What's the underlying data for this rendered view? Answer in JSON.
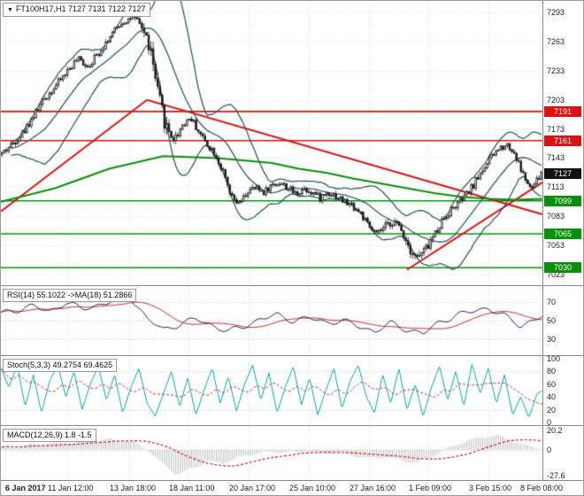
{
  "title": {
    "text": "FT100H17,H1 7127 7131 7122 7127"
  },
  "colors": {
    "grid": "#dcdcdc",
    "frame": "#8a8a8a",
    "candle_stroke": "#1a1a1a",
    "bull_fill": "#ffffff",
    "bear_fill": "#1a1a1a",
    "bollinger": "#2f5f5f",
    "red_line": "#dd1111",
    "green_line": "#0a8f0a",
    "badge_red": "#dd1111",
    "badge_green": "#0a8f0a",
    "badge_black": "#111111",
    "rsi_line": "#1a1a66",
    "signal_red": "#cc2222",
    "stoch_line": "#00a6a6",
    "macd_hist": "#bdbdbd"
  },
  "chart_data": {
    "type": "candlestick",
    "symbol": "FT100H17",
    "timeframe": "H1",
    "ohlc_current": {
      "open": 7127,
      "high": 7131,
      "low": 7122,
      "close": 7127
    },
    "x_labels": [
      {
        "label": "6 Jan 2017",
        "pos": 0.008,
        "bold": true
      },
      {
        "label": "11 Jan 12:00",
        "pos": 0.122
      },
      {
        "label": "13 Jan 18:00",
        "pos": 0.237
      },
      {
        "label": "18 Jan 11:00",
        "pos": 0.347
      },
      {
        "label": "20 Jan 17:00",
        "pos": 0.458
      },
      {
        "label": "25 Jan 10:00",
        "pos": 0.568
      },
      {
        "label": "27 Jan 16:00",
        "pos": 0.679
      },
      {
        "label": "1 Feb 09:00",
        "pos": 0.789
      },
      {
        "label": "3 Feb 15:00",
        "pos": 0.9
      },
      {
        "label": "8 Feb 08:00",
        "pos": 0.995
      }
    ],
    "main": {
      "y_ticks": [
        7293,
        7263,
        7233,
        7203,
        7173,
        7143,
        7113,
        7083,
        7053,
        7023
      ],
      "y_range": [
        7012,
        7305
      ],
      "hlines": [
        {
          "price": 7191,
          "color": "red"
        },
        {
          "price": 7161,
          "color": "red"
        },
        {
          "price": 7099,
          "color": "green"
        },
        {
          "price": 7065,
          "color": "green"
        },
        {
          "price": 7030,
          "color": "green"
        }
      ],
      "price_badges": [
        {
          "price": 7191,
          "kind": "red"
        },
        {
          "price": 7161,
          "kind": "red"
        },
        {
          "price": 7127,
          "kind": "black"
        },
        {
          "price": 7099,
          "kind": "green"
        },
        {
          "price": 7065,
          "kind": "green"
        },
        {
          "price": 7030,
          "kind": "green"
        }
      ],
      "trendlines": [
        {
          "points": [
            [
              0,
              7088
            ],
            [
              0.27,
              7203
            ],
            [
              1,
              7085
            ]
          ],
          "color": "red",
          "width": 2
        },
        {
          "points": [
            [
              0.75,
              7028
            ],
            [
              1,
              7118
            ]
          ],
          "color": "red",
          "width": 2
        }
      ],
      "ma_green": {
        "points": [
          [
            0,
            7098
          ],
          [
            0.1,
            7112
          ],
          [
            0.2,
            7132
          ],
          [
            0.3,
            7145
          ],
          [
            0.4,
            7143
          ],
          [
            0.5,
            7138
          ],
          [
            0.55,
            7132
          ],
          [
            0.6,
            7128
          ],
          [
            0.65,
            7122
          ],
          [
            0.7,
            7117
          ],
          [
            0.75,
            7112
          ],
          [
            0.8,
            7107
          ],
          [
            0.85,
            7103
          ],
          [
            0.9,
            7101
          ],
          [
            0.95,
            7100
          ],
          [
            1,
            7101
          ]
        ],
        "width": 2
      },
      "bollinger": {
        "period": 20,
        "dev": 2
      },
      "candles_count": 240,
      "price_path": [
        [
          0,
          7148
        ],
        [
          0.02,
          7158
        ],
        [
          0.04,
          7170
        ],
        [
          0.06,
          7188
        ],
        [
          0.08,
          7205
        ],
        [
          0.1,
          7218
        ],
        [
          0.12,
          7232
        ],
        [
          0.14,
          7245
        ],
        [
          0.16,
          7238
        ],
        [
          0.18,
          7252
        ],
        [
          0.2,
          7268
        ],
        [
          0.22,
          7282
        ],
        [
          0.24,
          7288
        ],
        [
          0.26,
          7278
        ],
        [
          0.275,
          7255
        ],
        [
          0.29,
          7205
        ],
        [
          0.305,
          7175
        ],
        [
          0.32,
          7162
        ],
        [
          0.335,
          7178
        ],
        [
          0.35,
          7185
        ],
        [
          0.365,
          7170
        ],
        [
          0.38,
          7158
        ],
        [
          0.395,
          7148
        ],
        [
          0.41,
          7128
        ],
        [
          0.425,
          7102
        ],
        [
          0.44,
          7095
        ],
        [
          0.455,
          7108
        ],
        [
          0.47,
          7112
        ],
        [
          0.485,
          7108
        ],
        [
          0.5,
          7115
        ],
        [
          0.515,
          7118
        ],
        [
          0.53,
          7112
        ],
        [
          0.545,
          7106
        ],
        [
          0.56,
          7112
        ],
        [
          0.575,
          7108
        ],
        [
          0.59,
          7102
        ],
        [
          0.605,
          7108
        ],
        [
          0.62,
          7104
        ],
        [
          0.635,
          7098
        ],
        [
          0.65,
          7094
        ],
        [
          0.665,
          7086
        ],
        [
          0.68,
          7072
        ],
        [
          0.695,
          7064
        ],
        [
          0.71,
          7072
        ],
        [
          0.725,
          7078
        ],
        [
          0.74,
          7070
        ],
        [
          0.755,
          7052
        ],
        [
          0.77,
          7040
        ],
        [
          0.785,
          7048
        ],
        [
          0.8,
          7062
        ],
        [
          0.815,
          7078
        ],
        [
          0.83,
          7088
        ],
        [
          0.845,
          7096
        ],
        [
          0.86,
          7104
        ],
        [
          0.875,
          7116
        ],
        [
          0.89,
          7130
        ],
        [
          0.905,
          7142
        ],
        [
          0.92,
          7152
        ],
        [
          0.935,
          7158
        ],
        [
          0.95,
          7148
        ],
        [
          0.965,
          7128
        ],
        [
          0.98,
          7110
        ],
        [
          0.99,
          7118
        ],
        [
          1,
          7127
        ]
      ]
    },
    "rsi": {
      "label": "RSI(14) 55.1022 ->MA(18) 51.2866",
      "value": 55.1022,
      "ma_value": 51.2866,
      "y_ticks": [
        70,
        50,
        30
      ],
      "range": [
        12,
        88
      ],
      "levels": [
        70,
        50,
        30
      ],
      "points": [
        [
          0,
          58
        ],
        [
          0.03,
          62
        ],
        [
          0.06,
          66
        ],
        [
          0.09,
          60
        ],
        [
          0.12,
          70
        ],
        [
          0.15,
          63
        ],
        [
          0.18,
          67
        ],
        [
          0.21,
          72
        ],
        [
          0.24,
          75
        ],
        [
          0.27,
          52
        ],
        [
          0.3,
          40
        ],
        [
          0.33,
          46
        ],
        [
          0.36,
          52
        ],
        [
          0.39,
          45
        ],
        [
          0.42,
          38
        ],
        [
          0.45,
          44
        ],
        [
          0.48,
          52
        ],
        [
          0.51,
          56
        ],
        [
          0.54,
          50
        ],
        [
          0.57,
          53
        ],
        [
          0.6,
          48
        ],
        [
          0.63,
          50
        ],
        [
          0.66,
          44
        ],
        [
          0.69,
          38
        ],
        [
          0.72,
          47
        ],
        [
          0.75,
          40
        ],
        [
          0.78,
          36
        ],
        [
          0.81,
          48
        ],
        [
          0.84,
          56
        ],
        [
          0.87,
          60
        ],
        [
          0.9,
          64
        ],
        [
          0.93,
          55
        ],
        [
          0.96,
          44
        ],
        [
          0.98,
          50
        ],
        [
          1,
          55.1
        ]
      ]
    },
    "stoch": {
      "label": "Stoch(5,3,3) 49.2754 69.4625",
      "value": 49.2754,
      "signal_value": 69.4625,
      "y_ticks": [
        100,
        80,
        60,
        40,
        20,
        0
      ],
      "range": [
        -4,
        104
      ],
      "levels": [
        80,
        20
      ],
      "points": [
        [
          0,
          85
        ],
        [
          0.015,
          55
        ],
        [
          0.03,
          90
        ],
        [
          0.045,
          25
        ],
        [
          0.06,
          75
        ],
        [
          0.075,
          15
        ],
        [
          0.09,
          65
        ],
        [
          0.105,
          90
        ],
        [
          0.12,
          40
        ],
        [
          0.135,
          80
        ],
        [
          0.15,
          20
        ],
        [
          0.165,
          60
        ],
        [
          0.18,
          88
        ],
        [
          0.195,
          35
        ],
        [
          0.21,
          75
        ],
        [
          0.225,
          15
        ],
        [
          0.24,
          55
        ],
        [
          0.255,
          85
        ],
        [
          0.27,
          30
        ],
        [
          0.285,
          10
        ],
        [
          0.3,
          45
        ],
        [
          0.315,
          80
        ],
        [
          0.33,
          25
        ],
        [
          0.345,
          70
        ],
        [
          0.36,
          12
        ],
        [
          0.375,
          50
        ],
        [
          0.39,
          85
        ],
        [
          0.405,
          30
        ],
        [
          0.42,
          72
        ],
        [
          0.435,
          18
        ],
        [
          0.45,
          60
        ],
        [
          0.465,
          90
        ],
        [
          0.48,
          35
        ],
        [
          0.495,
          78
        ],
        [
          0.51,
          15
        ],
        [
          0.525,
          55
        ],
        [
          0.54,
          88
        ],
        [
          0.555,
          28
        ],
        [
          0.57,
          70
        ],
        [
          0.585,
          12
        ],
        [
          0.6,
          50
        ],
        [
          0.615,
          85
        ],
        [
          0.63,
          22
        ],
        [
          0.645,
          65
        ],
        [
          0.66,
          90
        ],
        [
          0.675,
          40
        ],
        [
          0.69,
          15
        ],
        [
          0.705,
          75
        ],
        [
          0.72,
          30
        ],
        [
          0.735,
          85
        ],
        [
          0.75,
          20
        ],
        [
          0.765,
          60
        ],
        [
          0.78,
          10
        ],
        [
          0.795,
          55
        ],
        [
          0.81,
          88
        ],
        [
          0.825,
          35
        ],
        [
          0.84,
          80
        ],
        [
          0.855,
          25
        ],
        [
          0.87,
          92
        ],
        [
          0.885,
          45
        ],
        [
          0.9,
          85
        ],
        [
          0.915,
          30
        ],
        [
          0.93,
          75
        ],
        [
          0.945,
          12
        ],
        [
          0.96,
          40
        ],
        [
          0.975,
          8
        ],
        [
          0.99,
          45
        ],
        [
          1,
          49.3
        ]
      ]
    },
    "macd": {
      "label": "MACD(12,26,9) 1.8 -1.5",
      "value": 1.8,
      "signal_value": -1.5,
      "y_ticks": [
        20.2,
        0.0,
        -27.6
      ],
      "range": [
        -32,
        25
      ],
      "points": [
        [
          0,
          2
        ],
        [
          0.05,
          5
        ],
        [
          0.1,
          7
        ],
        [
          0.15,
          9
        ],
        [
          0.2,
          11
        ],
        [
          0.24,
          9
        ],
        [
          0.27,
          0
        ],
        [
          0.3,
          -16
        ],
        [
          0.325,
          -26
        ],
        [
          0.35,
          -20
        ],
        [
          0.38,
          -12
        ],
        [
          0.41,
          -14
        ],
        [
          0.44,
          -8
        ],
        [
          0.47,
          -4
        ],
        [
          0.5,
          -2
        ],
        [
          0.53,
          -3
        ],
        [
          0.56,
          -2
        ],
        [
          0.59,
          -4
        ],
        [
          0.62,
          -3
        ],
        [
          0.65,
          -6
        ],
        [
          0.68,
          -9
        ],
        [
          0.71,
          -7
        ],
        [
          0.74,
          -11
        ],
        [
          0.77,
          -14
        ],
        [
          0.8,
          -6
        ],
        [
          0.83,
          2
        ],
        [
          0.86,
          9
        ],
        [
          0.89,
          13
        ],
        [
          0.92,
          15
        ],
        [
          0.95,
          9
        ],
        [
          0.97,
          4
        ],
        [
          1,
          1.8
        ]
      ]
    }
  }
}
